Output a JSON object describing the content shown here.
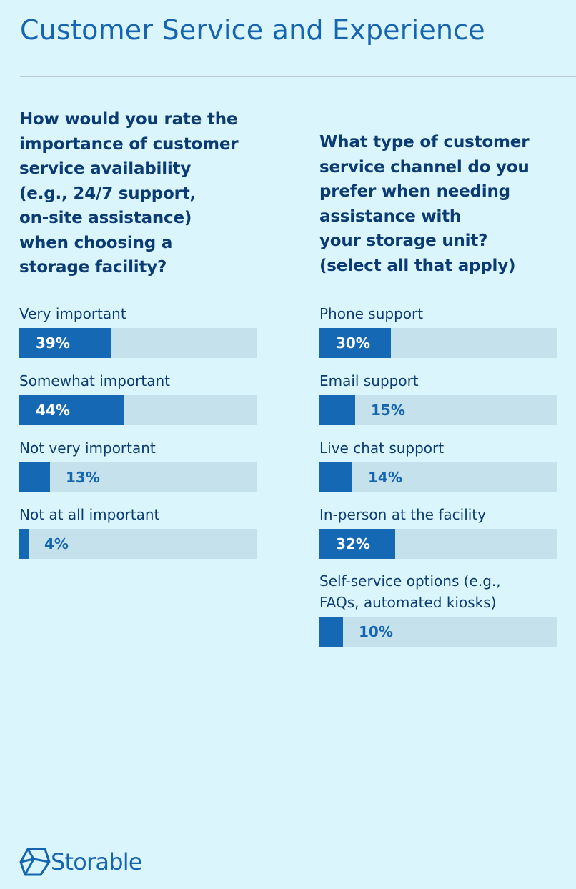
{
  "title": "Customer Service and Experience",
  "colors": {
    "background": "#dbf5fc",
    "bar_fill": "#1569b4",
    "bar_track": "#c5e2ec",
    "title": "#1565b0",
    "text": "#0b3b73"
  },
  "logo": {
    "text": "Storable",
    "icon": "storable-cube-icon"
  },
  "chart_data": [
    {
      "type": "bar",
      "orientation": "horizontal",
      "title": "How would you rate the\nimportance of customer\nservice availability\n(e.g., 24/7 support,\non-site assistance)\nwhen choosing a\nstorage facility?",
      "categories": [
        "Very important",
        "Somewhat important",
        "Not very important",
        "Not at all important"
      ],
      "values": [
        39,
        44,
        13,
        4
      ],
      "labels": [
        "39%",
        "44%",
        "13%",
        "4%"
      ],
      "unit": "%",
      "xlim": [
        0,
        100
      ]
    },
    {
      "type": "bar",
      "orientation": "horizontal",
      "title": "What type of customer\nservice channel do you\nprefer when needing\nassistance with\nyour storage unit?\n(select all that apply)",
      "categories": [
        "Phone support",
        "Email support",
        "Live chat support",
        "In-person at the facility",
        "Self-service options (e.g.,\nFAQs, automated kiosks)"
      ],
      "values": [
        30,
        15,
        14,
        32,
        10
      ],
      "labels": [
        "30%",
        "15%",
        "14%",
        "32%",
        "10%"
      ],
      "unit": "%",
      "xlim": [
        0,
        100
      ]
    }
  ]
}
